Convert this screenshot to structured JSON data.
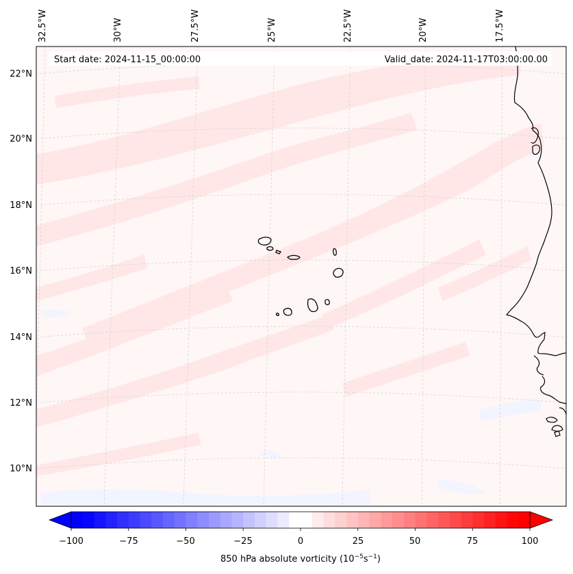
{
  "map": {
    "start_label": "Start date: 2024-11-15_00:00:00",
    "valid_label": "Valid_date: 2024-11-17T03:00:00.00",
    "lon_labels": [
      "32.5°W",
      "30°W",
      "27.5°W",
      "25°W",
      "22.5°W",
      "20°W",
      "17.5°W"
    ],
    "lat_labels": [
      "22°N",
      "20°N",
      "18°N",
      "16°N",
      "14°N",
      "12°N",
      "10°N"
    ],
    "region": {
      "lon_min": -32.5,
      "lon_max": -15.0,
      "lat_min": 8.8,
      "lat_max": 22.8
    },
    "field": "850 hPa absolute vorticity",
    "background_color": "#fff6f6",
    "band_color": "#ffe6e6",
    "weak_negative_color": "#f2f4ff",
    "coastline_color": "#000000",
    "gridline_color": "#c8c8c8"
  },
  "colorbar": {
    "label_text": "850 hPa absolute vorticity",
    "label_unit": "(10",
    "label_exp1": "−5",
    "label_mid": "s",
    "label_exp2": "−1",
    "label_close": ")",
    "ticks": [
      "−100",
      "−75",
      "−50",
      "−25",
      "0",
      "25",
      "50",
      "75",
      "100"
    ],
    "min": -100,
    "max": 100,
    "step": 5,
    "neg_color": "#0000ff",
    "pos_color": "#ff0000",
    "extend": "both"
  }
}
